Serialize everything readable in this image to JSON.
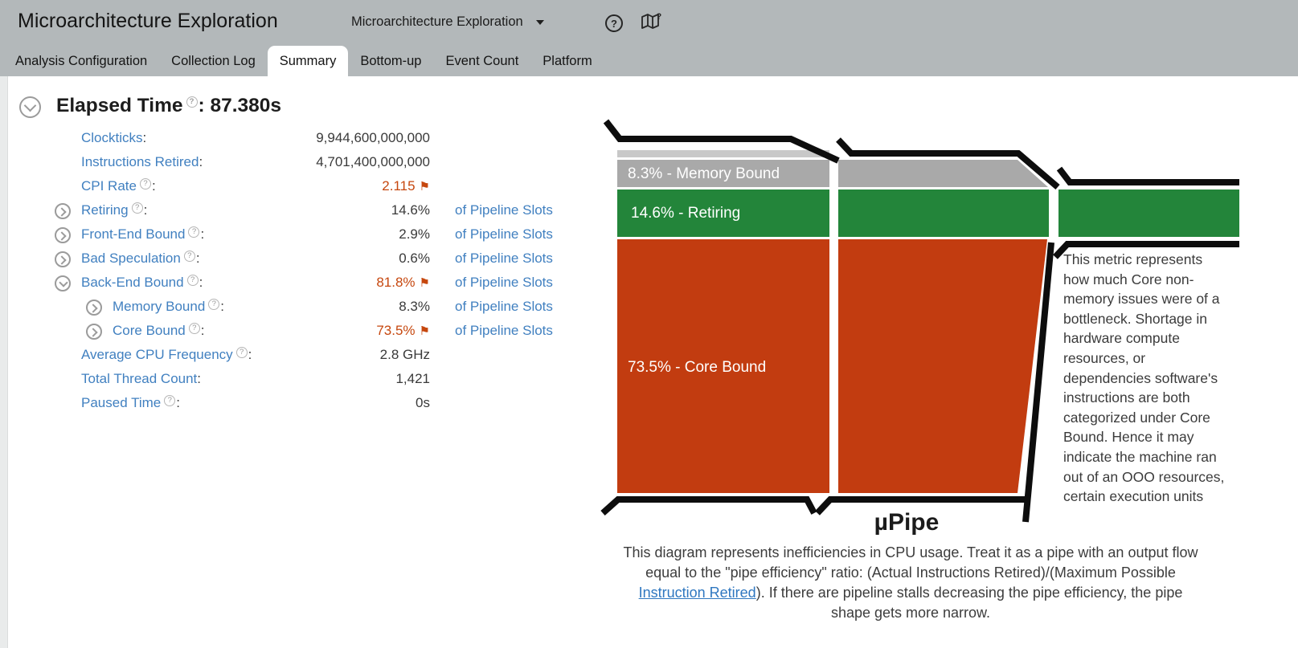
{
  "header": {
    "title": "Microarchitecture Exploration",
    "analysis_type_dropdown": "Microarchitecture Exploration"
  },
  "tabs": {
    "items": [
      {
        "label": "Analysis Configuration",
        "active": false
      },
      {
        "label": "Collection Log",
        "active": false
      },
      {
        "label": "Summary",
        "active": true
      },
      {
        "label": "Bottom-up",
        "active": false
      },
      {
        "label": "Event Count",
        "active": false
      },
      {
        "label": "Platform",
        "active": false
      }
    ]
  },
  "ui": {
    "colon": ":",
    "flag_glyph": "⚑",
    "help_glyph": "?"
  },
  "summary": {
    "elapsed_time": {
      "label": "Elapsed Time",
      "value": "87.380s"
    },
    "rows": [
      {
        "label": "Clockticks",
        "value": "9,944,600,000,000",
        "unit": "",
        "indent": 0,
        "expandable": false,
        "expanded": false,
        "help": false,
        "flag": false,
        "red": false
      },
      {
        "label": "Instructions Retired",
        "value": "4,701,400,000,000",
        "unit": "",
        "indent": 0,
        "expandable": false,
        "expanded": false,
        "help": false,
        "flag": false,
        "red": false
      },
      {
        "label": "CPI Rate",
        "value": "2.115",
        "unit": "",
        "indent": 0,
        "expandable": false,
        "expanded": false,
        "help": true,
        "flag": true,
        "red": true
      },
      {
        "label": "Retiring",
        "value": "14.6%",
        "unit": "of Pipeline Slots",
        "indent": 0,
        "expandable": true,
        "expanded": false,
        "help": true,
        "flag": false,
        "red": false
      },
      {
        "label": "Front-End Bound",
        "value": "2.9%",
        "unit": "of Pipeline Slots",
        "indent": 0,
        "expandable": true,
        "expanded": false,
        "help": true,
        "flag": false,
        "red": false
      },
      {
        "label": "Bad Speculation",
        "value": "0.6%",
        "unit": "of Pipeline Slots",
        "indent": 0,
        "expandable": true,
        "expanded": false,
        "help": true,
        "flag": false,
        "red": false
      },
      {
        "label": "Back-End Bound",
        "value": "81.8%",
        "unit": "of Pipeline Slots",
        "indent": 0,
        "expandable": true,
        "expanded": true,
        "help": true,
        "flag": true,
        "red": true
      },
      {
        "label": "Memory Bound",
        "value": "8.3%",
        "unit": "of Pipeline Slots",
        "indent": 1,
        "expandable": true,
        "expanded": false,
        "help": true,
        "flag": false,
        "red": false
      },
      {
        "label": "Core Bound",
        "value": "73.5%",
        "unit": "of Pipeline Slots",
        "indent": 1,
        "expandable": true,
        "expanded": false,
        "help": true,
        "flag": true,
        "red": true
      },
      {
        "label": "Average CPU Frequency",
        "value": "2.8 GHz",
        "unit": "",
        "indent": 0,
        "expandable": false,
        "expanded": false,
        "help": true,
        "flag": false,
        "red": false
      },
      {
        "label": "Total Thread Count",
        "value": "1,421",
        "unit": "",
        "indent": 0,
        "expandable": false,
        "expanded": false,
        "help": false,
        "flag": false,
        "red": false
      },
      {
        "label": "Paused Time",
        "value": "0s",
        "unit": "",
        "indent": 0,
        "expandable": false,
        "expanded": false,
        "help": true,
        "flag": false,
        "red": false
      }
    ]
  },
  "upipe": {
    "title": "µPipe",
    "colors": {
      "memory_bound_gray": "#a9a9a9",
      "front_end_light_gray": "#c8c8c8",
      "retiring_green": "#23853a",
      "core_bound_red": "#c23c10",
      "pipe_outline_black": "#0d0d0d",
      "label_blue": "#4180c0",
      "flag_red": "#c6470e"
    },
    "bands": [
      {
        "name": "front-end-and-bad-speculation",
        "percent": 3.5,
        "label": ""
      },
      {
        "name": "memory-bound",
        "percent": 8.3,
        "label": "8.3% - Memory Bound"
      },
      {
        "name": "retiring",
        "percent": 14.6,
        "label": "14.6% - Retiring"
      },
      {
        "name": "core-bound",
        "percent": 73.5,
        "label": "73.5% - Core Bound"
      }
    ],
    "tooltip_lines": [
      "This metric represents",
      "how much Core non-",
      "memory issues were of a",
      "bottleneck. Shortage in",
      "hardware compute",
      "resources, or",
      "dependencies software's",
      "instructions are both",
      "categorized under Core",
      "Bound. Hence it may",
      "indicate the machine ran",
      "out of an OOO resources,",
      "certain execution units"
    ],
    "description_part1": "This diagram represents inefficiencies in CPU usage. Treat it as a pipe with an output flow\nequal to the \"pipe efficiency\" ratio: (Actual Instructions Retired)/(Maximum Possible\n",
    "description_link": "Instruction Retired",
    "description_part2": "). If there are pipeline stalls decreasing the pipe efficiency, the pipe\nshape gets more narrow."
  }
}
